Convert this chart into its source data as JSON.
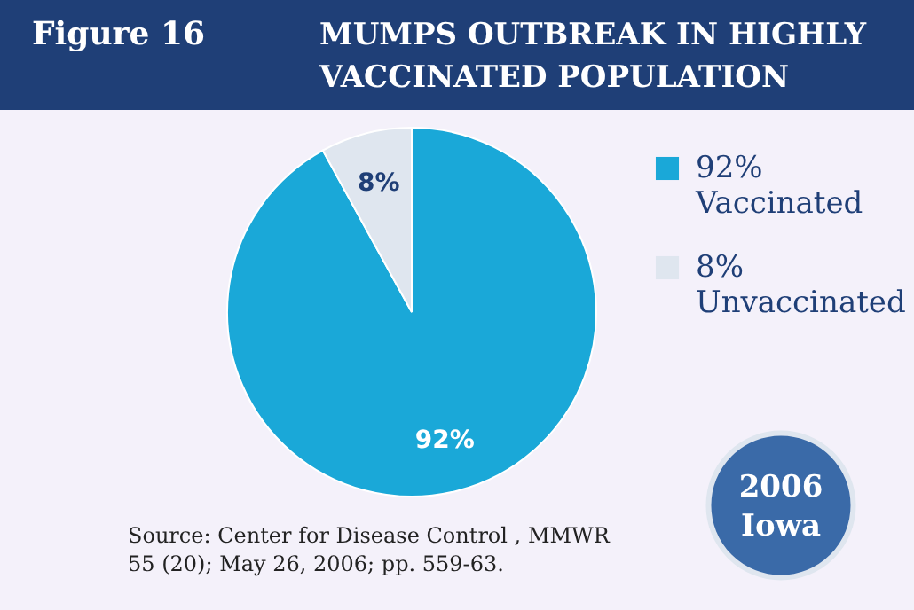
{
  "chart_data": {
    "type": "pie",
    "title": "MUMPS OUTBREAK IN HIGHLY VACCINATED POPULATION",
    "subtitle": "Figure 16",
    "categories": [
      "92% Vaccinated",
      "8% Unvaccinated"
    ],
    "values": [
      92,
      8
    ],
    "colors": [
      "#1aa8d8",
      "#dfe6ef"
    ],
    "value_labels": [
      "92%",
      "8%"
    ],
    "legend": "right",
    "annotations": [
      "2006 Iowa",
      "Source: Center for Disease Control , MMWR 55 (20); May 26, 2006; pp. 559-63."
    ]
  }
}
